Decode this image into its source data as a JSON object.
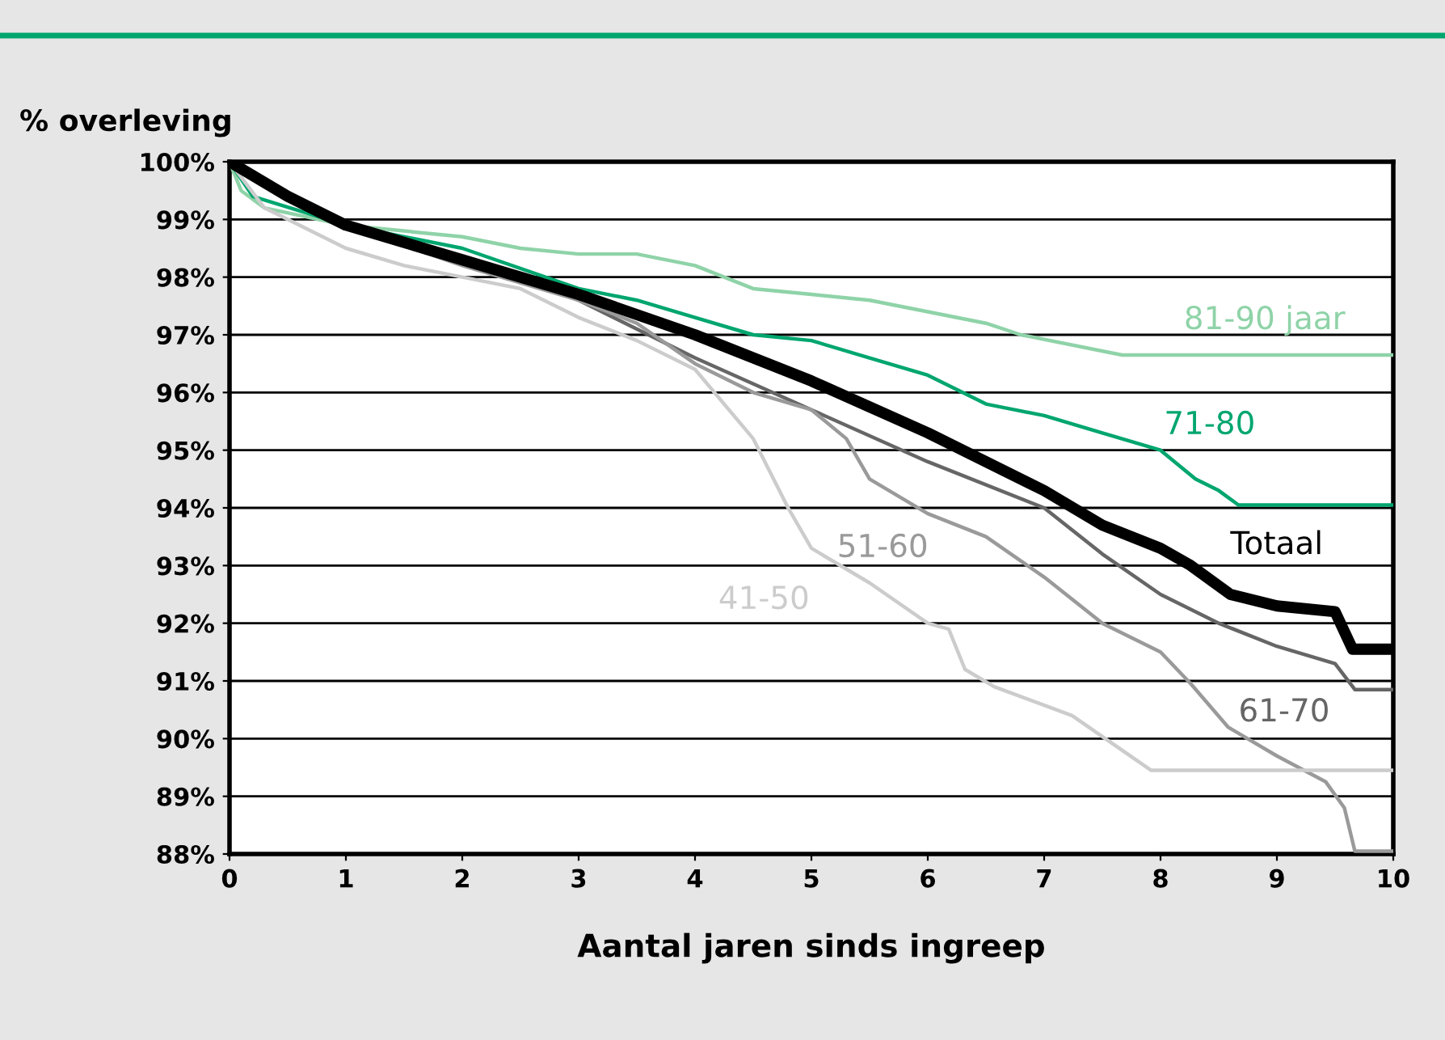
{
  "chart_data": {
    "type": "line",
    "ylabel": "% overleving",
    "xlabel": "Aantal jaren sinds ingreep",
    "xlim": [
      0,
      10
    ],
    "xticks": [
      0,
      1,
      2,
      3,
      4,
      5,
      6,
      7,
      8,
      9,
      10
    ],
    "ylim": [
      88,
      100
    ],
    "yticks": [
      {
        "value": 88,
        "label": "88%"
      },
      {
        "value": 89,
        "label": "89%"
      },
      {
        "value": 90,
        "label": "90%"
      },
      {
        "value": 91,
        "label": "91%"
      },
      {
        "value": 92,
        "label": "92%"
      },
      {
        "value": 93,
        "label": "93%"
      },
      {
        "value": 94,
        "label": "94%"
      },
      {
        "value": 95,
        "label": "95%"
      },
      {
        "value": 96,
        "label": "96%"
      },
      {
        "value": 97,
        "label": "97%"
      },
      {
        "value": 98,
        "label": "98%"
      },
      {
        "value": 99,
        "label": "99%"
      },
      {
        "value": 100,
        "label": "100%"
      }
    ],
    "grid": "y",
    "legend": false,
    "series": [
      {
        "name": "81-90 jaar",
        "color": "#8fd3a8",
        "x": [
          0,
          0.1,
          0.3,
          1.0,
          2,
          2.5,
          3,
          3.5,
          4,
          4.5,
          5,
          5.5,
          6.0,
          6.5,
          6.8,
          7.67,
          10
        ],
        "values": [
          100,
          99.5,
          99.2,
          98.9,
          98.7,
          98.5,
          98.4,
          98.4,
          98.2,
          97.8,
          97.7,
          97.6,
          97.4,
          97.2,
          97.0,
          96.65,
          96.65
        ]
      },
      {
        "name": "71-80",
        "color": "#00a66e",
        "x": [
          0,
          0.2,
          1,
          2,
          3,
          3.5,
          4,
          4.5,
          5,
          5.5,
          6,
          6.5,
          7,
          7.5,
          8,
          8.3,
          8.5,
          8.67,
          10
        ],
        "values": [
          100,
          99.4,
          98.9,
          98.5,
          97.8,
          97.6,
          97.3,
          97.0,
          96.9,
          96.6,
          96.3,
          95.8,
          95.6,
          95.3,
          95.0,
          94.5,
          94.3,
          94.05,
          94.05
        ]
      },
      {
        "name": "61-70",
        "color": "#666666",
        "x": [
          0,
          1,
          2,
          3,
          4,
          5,
          6,
          7,
          7.5,
          8,
          8.5,
          9,
          9.5,
          9.67,
          10
        ],
        "values": [
          100,
          98.9,
          98.3,
          97.6,
          96.6,
          95.7,
          94.8,
          94.0,
          93.2,
          92.5,
          92.0,
          91.6,
          91.3,
          90.85,
          90.85
        ]
      },
      {
        "name": "51-60",
        "color": "#9a9a9a",
        "x": [
          0,
          1,
          2,
          3,
          3.5,
          4,
          4.5,
          5,
          5.3,
          5.5,
          6,
          6.5,
          7,
          7.5,
          8,
          8.26,
          8.58,
          9.0,
          9.42,
          9.58,
          9.67,
          10
        ],
        "values": [
          100,
          98.9,
          98.2,
          97.6,
          97.2,
          96.5,
          96.0,
          95.7,
          95.2,
          94.5,
          93.9,
          93.5,
          92.8,
          92.0,
          91.5,
          90.95,
          90.2,
          89.7,
          89.25,
          88.8,
          88.05,
          88.05
        ]
      },
      {
        "name": "41-50",
        "color": "#cccccc",
        "x": [
          0,
          0.3,
          0.5,
          1,
          1.5,
          2,
          2.5,
          3,
          3.5,
          4,
          4.5,
          4.8,
          5.0,
          5.5,
          6,
          6.18,
          6.32,
          6.57,
          7.24,
          7.92,
          10
        ],
        "values": [
          100,
          99.2,
          99.0,
          98.5,
          98.2,
          98.0,
          97.8,
          97.3,
          96.9,
          96.4,
          95.2,
          94.0,
          93.3,
          92.7,
          92.0,
          91.9,
          91.2,
          90.9,
          90.4,
          89.45,
          89.45
        ]
      },
      {
        "name": "Totaal",
        "color": "#000000",
        "x": [
          0,
          0.5,
          1,
          2,
          3,
          4,
          5,
          6,
          7,
          7.5,
          8,
          8.26,
          8.6,
          9,
          9.5,
          9.65,
          10
        ],
        "values": [
          100,
          99.4,
          98.9,
          98.3,
          97.7,
          97.0,
          96.2,
          95.3,
          94.3,
          93.7,
          93.3,
          93.0,
          92.5,
          92.3,
          92.2,
          91.55,
          91.55
        ]
      }
    ]
  }
}
